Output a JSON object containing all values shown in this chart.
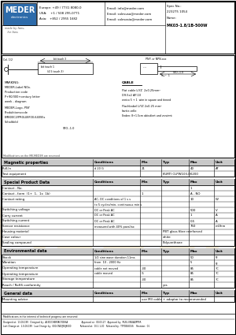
{
  "title": "MK03-1.8/1B-500W",
  "spec_no_val": "223275 1054",
  "name_val": "MK03-1.8/1B-500W",
  "contact_europe": "Europe: +49 / 7731 8080-0",
  "contact_usa": "USA:    +1 / 508 295-0771",
  "contact_asia": "Asia:   +852 / 2955 1682",
  "email_info": "Email: info@meder.com",
  "email_sales": "Email: salesusa@meder.com",
  "email_asia": "Email: salesasia@meder.com",
  "mag_props_title": "Magnetic properties",
  "mag_props_headers": [
    "Conditions",
    "Min",
    "Typ",
    "Max",
    "Unit"
  ],
  "mag_rows": [
    [
      "Pull-In",
      "d 20 G",
      "21",
      "",
      "40",
      "AT"
    ],
    [
      "Test equipment",
      "",
      "",
      "KURTI CLPW103-EK200",
      "",
      ""
    ]
  ],
  "special_title": "Special Product Data",
  "special_headers": [
    "Conditions",
    "Min",
    "Typ",
    "Max",
    "Unit"
  ],
  "special_rows": [
    [
      "Contact - No.",
      "",
      "",
      "",
      "1",
      ""
    ],
    [
      "Contact - form  (1+  1-  1x  1b)",
      "",
      "1",
      "",
      "A - NO",
      ""
    ],
    [
      "Contact rating",
      "AC, DC conditions of 1 s s",
      "",
      "",
      "10",
      "W"
    ],
    [
      "",
      "to 5 cycles/min, continuous min s",
      "",
      "",
      "",
      ""
    ],
    [
      "Switching voltage",
      "DC or Peak AC",
      "",
      "",
      "500",
      "V"
    ],
    [
      "Carry current",
      "DC or Peak AC",
      "",
      "",
      "1",
      "A"
    ],
    [
      "Switching current",
      "DC or Peak AC",
      "",
      "",
      "0.5",
      "A"
    ],
    [
      "Sensor resistance",
      "measured with 40% parallax",
      "",
      "",
      "750",
      "mOhm"
    ],
    [
      "Housing material",
      "",
      "",
      "PBT glass fibre reinforced",
      "",
      ""
    ],
    [
      "Case colour",
      "",
      "",
      "white",
      "",
      ""
    ],
    [
      "Sealing compound",
      "",
      "",
      "Polyurethane",
      "",
      ""
    ]
  ],
  "env_title": "Environmental data",
  "env_headers": [
    "Conditions",
    "Min",
    "Typ",
    "Max",
    "Unit"
  ],
  "env_rows": [
    [
      "Shock",
      "1/2 sine wave duration 11ms",
      "",
      "",
      "50",
      "g"
    ],
    [
      "Vibration",
      "from  10 - 2000 Hz",
      "",
      "",
      "5",
      "g"
    ],
    [
      "Operating temperature",
      "cable not moved",
      "-30",
      "",
      "85",
      "°C"
    ],
    [
      "Operating temperature",
      "cable moved",
      "-5",
      "",
      "85",
      "°C"
    ],
    [
      "Storage temperature",
      "",
      "-30",
      "",
      "85",
      "°C"
    ],
    [
      "Reach / RoHS conformity",
      "",
      "",
      "yes",
      "",
      ""
    ]
  ],
  "gen_title": "General data",
  "gen_headers": [
    "Conditions",
    "Min",
    "Typ",
    "Max",
    "Unit"
  ],
  "gen_rows": [
    [
      "Mounting advice",
      "",
      "use M3 cable + adaptor to recommended",
      "",
      "",
      ""
    ]
  ],
  "footer_note": "Modifications in the interest of technical progress are reserved.",
  "footer_row1": "Designed at:  13-08-199   Designed by:  ALEO/CHEM/ALT/DEKA                    Approved at:  00-03-27   Approved by:  RUEL ENGADPPER",
  "footer_row2": "Last Change at:  1.0-08-199   Last Change by:  000/CND/JKSJK000             Released at:  00.1.1-00   Released by:  TTPDES001S    Revision:  01",
  "bg_color": "#ffffff",
  "meder_blue": "#2d6baa",
  "table_header_bg": "#c8c8c8",
  "watermark_color": "#d4921a",
  "watermark_alpha": 0.18
}
